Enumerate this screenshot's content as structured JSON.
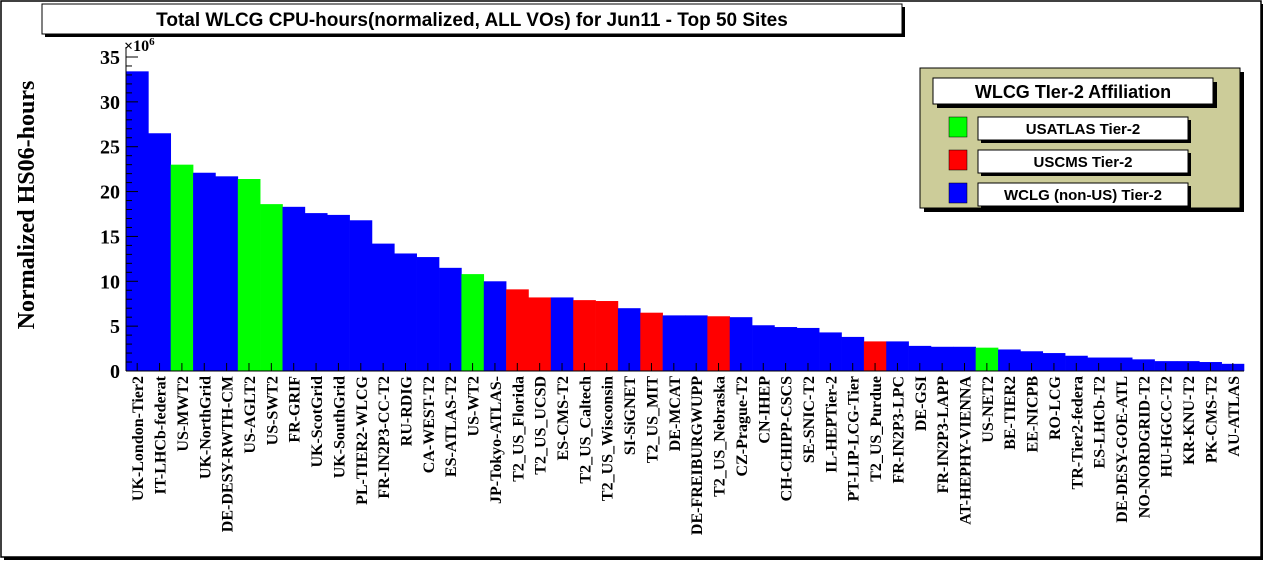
{
  "colors": {
    "frame_bg": "#ffffff",
    "legend_bg": "#cccc99",
    "box_bg": "#ffffff",
    "axis": "#000000",
    "series": {
      "usatlas": "#00ff00",
      "uscms": "#ff0000",
      "wlcg": "#0000ff"
    }
  },
  "chart_data": {
    "type": "bar",
    "title": "Total WLCG CPU-hours(normalized, ALL VOs) for Jun11 - Top 50 Sites",
    "ylabel": "Normalized HS06-hours",
    "exponent_base": "×10",
    "exponent_power": "6",
    "ylim": [
      0,
      35
    ],
    "yticks": [
      0,
      5,
      10,
      15,
      20,
      25,
      30,
      35
    ],
    "grid": false,
    "legend_position": "top-right",
    "legend": {
      "title": "WLCG TIer-2 Affiliation",
      "entries": [
        {
          "key": "usatlas",
          "label": "USATLAS Tier-2"
        },
        {
          "key": "uscms",
          "label": "USCMS Tier-2"
        },
        {
          "key": "wlcg",
          "label": "WCLG (non-US) Tier-2"
        }
      ]
    },
    "categories": [
      "UK-London-Tier2",
      "IT-LHCb-federat",
      "US-MWT2",
      "UK-NorthGrid",
      "DE-DESY-RWTH-CM",
      "US-AGLT2",
      "US-SWT2",
      "FR-GRIF",
      "UK-ScotGrid",
      "UK-SouthGrid",
      "PL-TIER2-WLCG",
      "FR-IN2P3-CC-T2",
      "RU-RDIG",
      "CA-WEST-T2",
      "ES-ATLAS-T2",
      "US-WT2",
      "JP-Tokyo-ATLAS-",
      "T2_US_Florida",
      "T2_US_UCSD",
      "ES-CMS-T2",
      "T2_US_Caltech",
      "T2_US_Wisconsin",
      "SI-SiGNET",
      "T2_US_MIT",
      "DE-MCAT",
      "DE-FREIBURGWUPP",
      "T2_US_Nebraska",
      "CZ-Prague-T2",
      "CN-IHEP",
      "CH-CHIPP-CSCS",
      "SE-SNIC-T2",
      "IL-HEPTier-2",
      "PT-LIP-LCG-Tier",
      "T2_US_Purdue",
      "FR-IN2P3-LPC",
      "DE-GSI",
      "FR-IN2P3-LAPP",
      "AT-HEPHY-VIENNA",
      "US-NET2",
      "BE-TIER2",
      "EE-NICPB",
      "RO-LCG",
      "TR-Tier2-federa",
      "ES-LHCb-T2",
      "DE-DESY-GOE-ATL",
      "NO-NORDGRID-T2",
      "HU-HGCC-T2",
      "KR-KNU-T2",
      "PK-CMS-T2",
      "AU-ATLAS"
    ],
    "values": [
      33.4,
      26.5,
      23.0,
      22.1,
      21.7,
      21.4,
      18.6,
      18.3,
      17.6,
      17.4,
      16.8,
      14.2,
      13.1,
      12.7,
      11.5,
      10.8,
      10.0,
      9.1,
      8.2,
      8.2,
      7.9,
      7.8,
      7.0,
      6.5,
      6.2,
      6.2,
      6.1,
      6.0,
      5.1,
      4.9,
      4.8,
      4.3,
      3.8,
      3.3,
      3.3,
      2.8,
      2.7,
      2.7,
      2.6,
      2.4,
      2.2,
      2.0,
      1.7,
      1.5,
      1.5,
      1.3,
      1.1,
      1.1,
      1.0,
      0.8
    ],
    "affiliation": [
      "wlcg",
      "wlcg",
      "usatlas",
      "wlcg",
      "wlcg",
      "usatlas",
      "usatlas",
      "wlcg",
      "wlcg",
      "wlcg",
      "wlcg",
      "wlcg",
      "wlcg",
      "wlcg",
      "wlcg",
      "usatlas",
      "wlcg",
      "uscms",
      "uscms",
      "wlcg",
      "uscms",
      "uscms",
      "wlcg",
      "uscms",
      "wlcg",
      "wlcg",
      "uscms",
      "wlcg",
      "wlcg",
      "wlcg",
      "wlcg",
      "wlcg",
      "wlcg",
      "uscms",
      "wlcg",
      "wlcg",
      "wlcg",
      "wlcg",
      "usatlas",
      "wlcg",
      "wlcg",
      "wlcg",
      "wlcg",
      "wlcg",
      "wlcg",
      "wlcg",
      "wlcg",
      "wlcg",
      "wlcg",
      "wlcg"
    ]
  }
}
